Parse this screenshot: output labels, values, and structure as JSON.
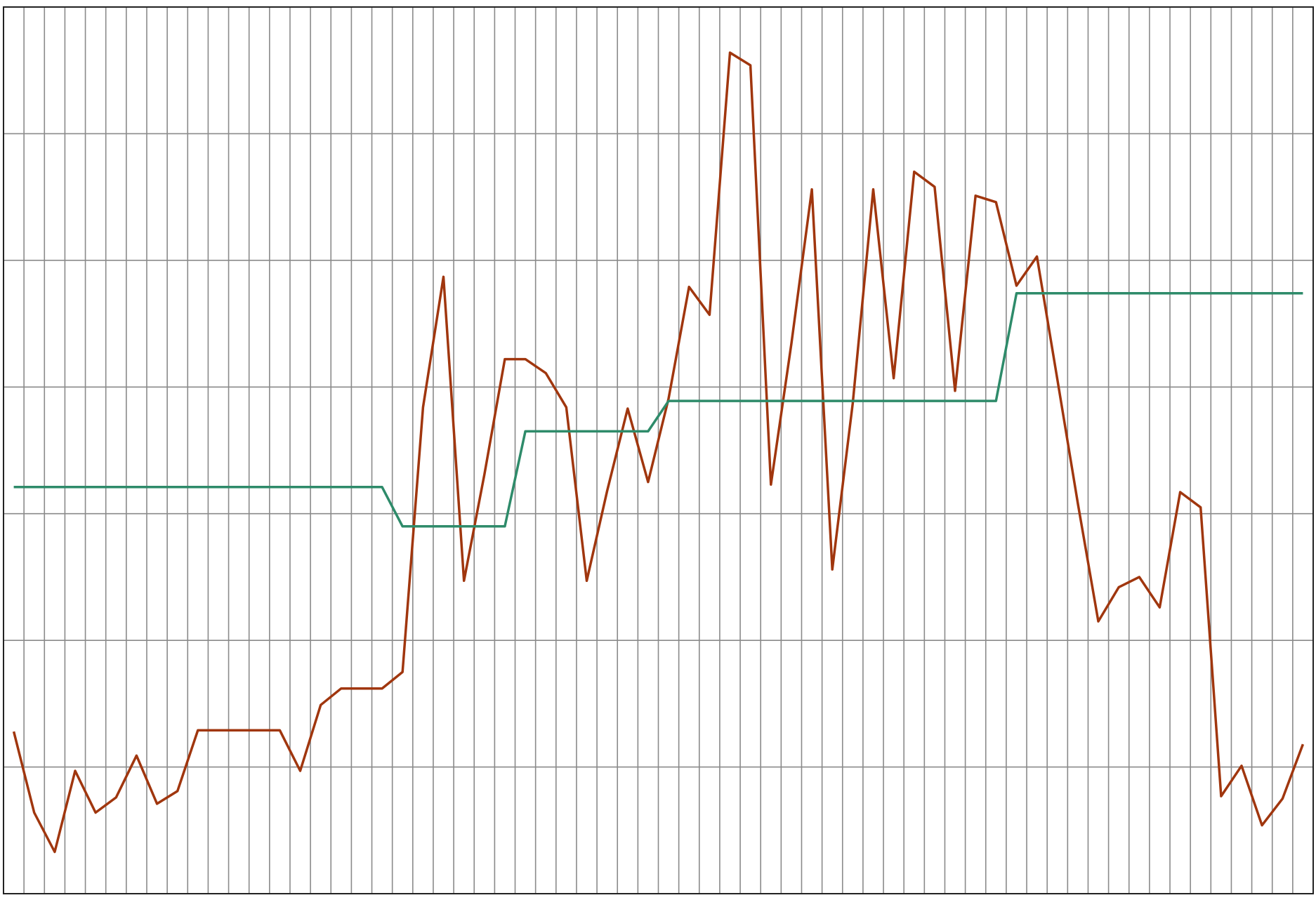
{
  "chart_data": {
    "type": "line",
    "categories": [
      null,
      null,
      null,
      null,
      null,
      null,
      null,
      null,
      null,
      null,
      null,
      null,
      null,
      null,
      null,
      null,
      null,
      null,
      null,
      null,
      null,
      null,
      null,
      null,
      null,
      null,
      null,
      null,
      null,
      null,
      null,
      null,
      null,
      null,
      null,
      null,
      null,
      null,
      null,
      null,
      null,
      null,
      null,
      null,
      null,
      null,
      null,
      null,
      null,
      null,
      null,
      null,
      null,
      null,
      null,
      null,
      null,
      null,
      null,
      null,
      null,
      null,
      null,
      null
    ],
    "series": [
      {
        "color": "#a0360e",
        "values": [
          1.28,
          0.64,
          0.33,
          0.97,
          0.64,
          0.76,
          1.09,
          0.71,
          0.81,
          1.29,
          1.29,
          1.29,
          1.29,
          1.29,
          0.97,
          1.49,
          1.62,
          1.62,
          1.62,
          1.75,
          3.84,
          4.87,
          2.47,
          3.31,
          4.22,
          4.22,
          4.11,
          3.84,
          2.47,
          3.18,
          3.83,
          3.25,
          3.91,
          4.79,
          4.57,
          6.64,
          6.54,
          3.23,
          4.34,
          5.56,
          2.56,
          3.87,
          5.56,
          4.07,
          5.7,
          5.58,
          3.97,
          5.51,
          5.46,
          4.8,
          5.03,
          4.06,
          3.08,
          2.15,
          2.42,
          2.5,
          2.26,
          3.17,
          3.05,
          0.77,
          1.01,
          0.54,
          0.75,
          1.18
        ]
      },
      {
        "color": "#2e8b6a",
        "values": [
          3.21,
          3.21,
          3.21,
          3.21,
          3.21,
          3.21,
          3.21,
          3.21,
          3.21,
          3.21,
          3.21,
          3.21,
          3.21,
          3.21,
          3.21,
          3.21,
          3.21,
          3.21,
          3.21,
          2.9,
          2.9,
          2.9,
          2.9,
          2.9,
          2.9,
          3.65,
          3.65,
          3.65,
          3.65,
          3.65,
          3.65,
          3.65,
          3.89,
          3.89,
          3.89,
          3.89,
          3.89,
          3.89,
          3.89,
          3.89,
          3.89,
          3.89,
          3.89,
          3.89,
          3.89,
          3.89,
          3.89,
          3.89,
          3.89,
          4.74,
          4.74,
          4.74,
          4.74,
          4.74,
          4.74,
          4.74,
          4.74,
          4.74,
          4.74,
          4.74,
          4.74,
          4.74,
          4.74,
          4.74
        ]
      }
    ],
    "ylim": [
      0,
      7
    ],
    "yticks": [
      0,
      1,
      2,
      3,
      4,
      5,
      6,
      7
    ],
    "grid": true
  }
}
